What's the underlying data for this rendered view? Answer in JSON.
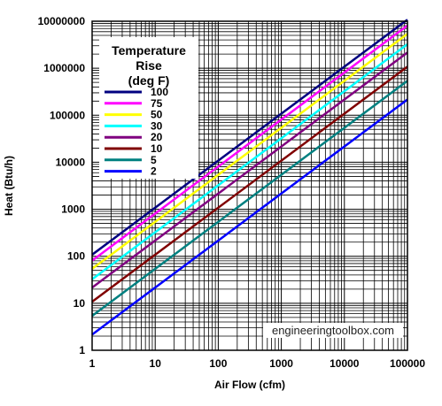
{
  "chart_data": {
    "type": "line",
    "title": "",
    "xlabel": "Air Flow (cfm)",
    "ylabel": "Heat (Btu/h)",
    "xscale": "log",
    "yscale": "log",
    "xlim": [
      1,
      100000
    ],
    "ylim": [
      1,
      10000000
    ],
    "grid": true,
    "x_ticks": [
      "1",
      "10",
      "100",
      "1000",
      "10000",
      "100000"
    ],
    "y_ticks": [
      "1",
      "10",
      "100",
      "1000",
      "10000",
      "100000",
      "1000000",
      "10000000"
    ],
    "legend": {
      "title_lines": [
        "Temperature",
        "Rise",
        "(deg F)"
      ],
      "placement": "upper-left"
    },
    "x": [
      1,
      100000
    ],
    "series": [
      {
        "name": "100",
        "color": "#000080",
        "values": [
          108,
          10800000
        ]
      },
      {
        "name": "75",
        "color": "#ff00ff",
        "values": [
          81,
          8100000
        ]
      },
      {
        "name": "50",
        "color": "#ffff00",
        "values": [
          54,
          5400000
        ]
      },
      {
        "name": "30",
        "color": "#00ffff",
        "values": [
          32.4,
          3240000
        ]
      },
      {
        "name": "20",
        "color": "#800080",
        "values": [
          21.6,
          2160000
        ]
      },
      {
        "name": "10",
        "color": "#800000",
        "values": [
          10.8,
          1080000
        ]
      },
      {
        "name": "5",
        "color": "#008080",
        "values": [
          5.4,
          540000
        ]
      },
      {
        "name": "2",
        "color": "#0000ff",
        "values": [
          2.16,
          216000
        ]
      }
    ]
  },
  "watermark": "engineeringtoolbox.com"
}
